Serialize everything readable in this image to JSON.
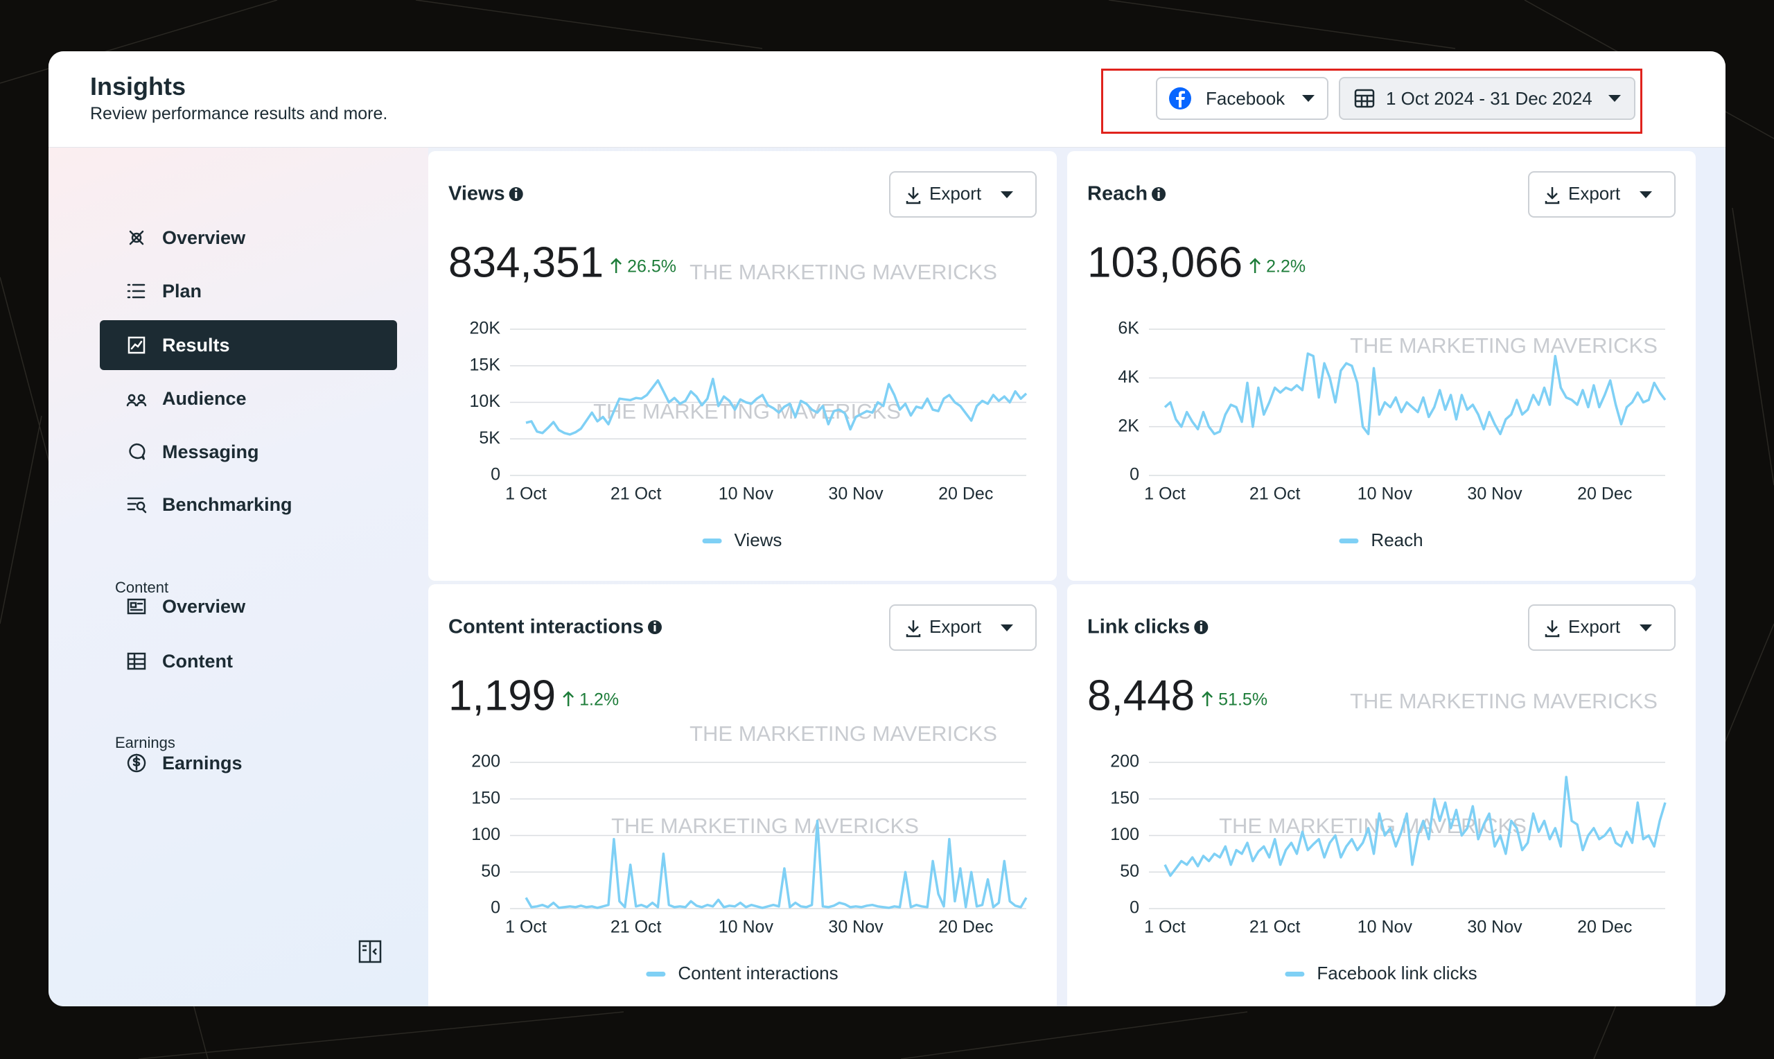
{
  "header": {
    "title": "Insights",
    "subtitle": "Review performance results and more.",
    "platform": "Facebook",
    "date_range": "1 Oct 2024 - 31 Dec 2024"
  },
  "nav": {
    "main": [
      "Overview",
      "Plan",
      "Results",
      "Audience",
      "Messaging",
      "Benchmarking"
    ],
    "content_heading": "Content",
    "content": [
      "Overview",
      "Content"
    ],
    "earnings_heading": "Earnings",
    "earnings": [
      "Earnings"
    ]
  },
  "chart_data": [
    {
      "type": "line",
      "title": "Views",
      "total": "834,351",
      "change": "26.5%",
      "export": "Export",
      "watermarks": [
        "THE MARKETING MAVERICKS",
        "THE MARKETING MAVERICKS"
      ],
      "categories": [
        "1 Oct",
        null,
        null,
        null,
        null,
        null,
        null,
        null,
        null,
        null,
        null,
        null,
        null,
        null,
        null,
        null,
        null,
        null,
        null,
        null,
        "21 Oct",
        null,
        null,
        null,
        null,
        null,
        null,
        null,
        null,
        null,
        null,
        null,
        null,
        null,
        null,
        null,
        null,
        null,
        null,
        null,
        "10 Nov",
        null,
        null,
        null,
        null,
        null,
        null,
        null,
        null,
        null,
        null,
        null,
        null,
        null,
        null,
        null,
        null,
        null,
        null,
        null,
        "30 Nov",
        null,
        null,
        null,
        null,
        null,
        null,
        null,
        null,
        null,
        null,
        null,
        null,
        null,
        null,
        null,
        null,
        null,
        null,
        null,
        "20 Dec",
        null,
        null,
        null,
        null,
        null,
        null,
        null,
        null,
        null,
        null,
        null
      ],
      "series": [
        {
          "name": "Views",
          "color": "#7fd0f5",
          "values": [
            7200,
            7400,
            6000,
            5800,
            6500,
            7300,
            6200,
            5800,
            5600,
            5900,
            6400,
            7500,
            8600,
            7400,
            8000,
            7000,
            8800,
            10500,
            10400,
            10300,
            10600,
            10500,
            11000,
            12000,
            13000,
            11500,
            10000,
            10600,
            9800,
            10200,
            11500,
            10800,
            9600,
            10500,
            13200,
            9500,
            10800,
            10200,
            9000,
            10400,
            10000,
            9800,
            10500,
            11000,
            9600,
            9200,
            8600,
            9400,
            9800,
            8000,
            10200,
            9800,
            9000,
            8600,
            9500,
            7000,
            8800,
            9000,
            8500,
            6300,
            8000,
            8400,
            8800,
            8600,
            10000,
            9500,
            12500,
            11000,
            9000,
            9800,
            8200,
            9400,
            9200,
            10500,
            9000,
            8800,
            10500,
            11000,
            10000,
            9500,
            8500,
            7500,
            9500,
            10200,
            9800,
            11000,
            10200,
            10800,
            10000,
            11500,
            10500,
            11200
          ]
        }
      ],
      "ylim": [
        0,
        20000
      ],
      "yticks": [
        0,
        {
          "value": 5000,
          "label": "5K"
        },
        {
          "value": 10000,
          "label": "10K"
        },
        {
          "value": 15000,
          "label": "15K"
        },
        {
          "value": 20000,
          "label": "20K"
        }
      ],
      "grid": true
    },
    {
      "type": "line",
      "title": "Reach",
      "total": "103,066",
      "change": "2.2%",
      "export": "Export",
      "watermarks": [
        "THE MARKETING MAVERICKS"
      ],
      "categories": [
        "1 Oct",
        null,
        null,
        null,
        null,
        null,
        null,
        null,
        null,
        null,
        null,
        null,
        null,
        null,
        null,
        null,
        null,
        null,
        null,
        null,
        "21 Oct",
        null,
        null,
        null,
        null,
        null,
        null,
        null,
        null,
        null,
        null,
        null,
        null,
        null,
        null,
        null,
        null,
        null,
        null,
        null,
        "10 Nov",
        null,
        null,
        null,
        null,
        null,
        null,
        null,
        null,
        null,
        null,
        null,
        null,
        null,
        null,
        null,
        null,
        null,
        null,
        null,
        "30 Nov",
        null,
        null,
        null,
        null,
        null,
        null,
        null,
        null,
        null,
        null,
        null,
        null,
        null,
        null,
        null,
        null,
        null,
        null,
        null,
        "20 Dec",
        null,
        null,
        null,
        null,
        null,
        null,
        null,
        null,
        null,
        null,
        null
      ],
      "series": [
        {
          "name": "Reach",
          "color": "#7fd0f5",
          "values": [
            2800,
            3000,
            2300,
            2000,
            2600,
            2200,
            1900,
            2600,
            2000,
            1700,
            1800,
            2500,
            2900,
            2800,
            2200,
            3800,
            2000,
            3600,
            2500,
            3000,
            3600,
            3400,
            3600,
            3500,
            3700,
            3500,
            5000,
            4900,
            3200,
            4600,
            4000,
            3000,
            4300,
            4600,
            4500,
            3800,
            2000,
            1700,
            4400,
            2500,
            3000,
            2800,
            3200,
            2600,
            3000,
            2800,
            2600,
            3200,
            2400,
            2800,
            3500,
            2700,
            3300,
            2300,
            3300,
            2700,
            2900,
            2500,
            1900,
            2600,
            2100,
            1700,
            2300,
            2500,
            3100,
            2500,
            2700,
            3300,
            2900,
            3600,
            2900,
            4900,
            3600,
            3200,
            3100,
            2900,
            3500,
            2800,
            3700,
            2800,
            3300,
            3900,
            2900,
            2100,
            2800,
            3000,
            3400,
            3000,
            3100,
            3800,
            3400,
            3100
          ]
        }
      ],
      "ylim": [
        0,
        6000
      ],
      "yticks": [
        0,
        {
          "value": 2000,
          "label": "2K"
        },
        {
          "value": 4000,
          "label": "4K"
        },
        {
          "value": 6000,
          "label": "6K"
        }
      ],
      "grid": true
    },
    {
      "type": "line",
      "title": "Content interactions",
      "total": "1,199",
      "change": "1.2%",
      "export": "Export",
      "watermarks": [
        "THE MARKETING MAVERICKS",
        "THE MARKETING MAVERICKS"
      ],
      "categories": [
        "1 Oct",
        null,
        null,
        null,
        null,
        null,
        null,
        null,
        null,
        null,
        null,
        null,
        null,
        null,
        null,
        null,
        null,
        null,
        null,
        null,
        "21 Oct",
        null,
        null,
        null,
        null,
        null,
        null,
        null,
        null,
        null,
        null,
        null,
        null,
        null,
        null,
        null,
        null,
        null,
        null,
        null,
        "10 Nov",
        null,
        null,
        null,
        null,
        null,
        null,
        null,
        null,
        null,
        null,
        null,
        null,
        null,
        null,
        null,
        null,
        null,
        null,
        null,
        "30 Nov",
        null,
        null,
        null,
        null,
        null,
        null,
        null,
        null,
        null,
        null,
        null,
        null,
        null,
        null,
        null,
        null,
        null,
        null,
        null,
        "20 Dec",
        null,
        null,
        null,
        null,
        null,
        null,
        null,
        null,
        null,
        null,
        null
      ],
      "series": [
        {
          "name": "Content interactions",
          "color": "#7fd0f5",
          "values": [
            15,
            2,
            3,
            5,
            2,
            8,
            1,
            2,
            3,
            2,
            4,
            2,
            3,
            1,
            3,
            5,
            95,
            10,
            2,
            60,
            3,
            5,
            2,
            8,
            2,
            75,
            5,
            2,
            3,
            2,
            10,
            4,
            2,
            5,
            3,
            12,
            2,
            4,
            3,
            8,
            2,
            5,
            3,
            1,
            3,
            5,
            3,
            55,
            2,
            8,
            3,
            2,
            5,
            120,
            3,
            2,
            4,
            8,
            6,
            2,
            3,
            2,
            4,
            5,
            3,
            2,
            1,
            3,
            2,
            50,
            2,
            5,
            3,
            2,
            65,
            20,
            3,
            95,
            10,
            55,
            2,
            50,
            3,
            5,
            40,
            2,
            8,
            65,
            10,
            4,
            2,
            15
          ]
        }
      ],
      "ylim": [
        0,
        200
      ],
      "yticks": [
        0,
        50,
        100,
        150,
        200
      ],
      "grid": true
    },
    {
      "type": "line",
      "title": "Link clicks",
      "total": "8,448",
      "change": "51.5%",
      "export": "Export",
      "watermarks": [
        "THE MARKETING MAVERICKS",
        "THE MARKETING MAVERICKS"
      ],
      "categories": [
        "1 Oct",
        null,
        null,
        null,
        null,
        null,
        null,
        null,
        null,
        null,
        null,
        null,
        null,
        null,
        null,
        null,
        null,
        null,
        null,
        null,
        "21 Oct",
        null,
        null,
        null,
        null,
        null,
        null,
        null,
        null,
        null,
        null,
        null,
        null,
        null,
        null,
        null,
        null,
        null,
        null,
        null,
        "10 Nov",
        null,
        null,
        null,
        null,
        null,
        null,
        null,
        null,
        null,
        null,
        null,
        null,
        null,
        null,
        null,
        null,
        null,
        null,
        null,
        "30 Nov",
        null,
        null,
        null,
        null,
        null,
        null,
        null,
        null,
        null,
        null,
        null,
        null,
        null,
        null,
        null,
        null,
        null,
        null,
        null,
        "20 Dec",
        null,
        null,
        null,
        null,
        null,
        null,
        null,
        null,
        null,
        null,
        null
      ],
      "series": [
        {
          "name": "Facebook link clicks",
          "color": "#7fd0f5",
          "values": [
            60,
            45,
            55,
            65,
            60,
            70,
            58,
            72,
            65,
            75,
            70,
            85,
            60,
            80,
            75,
            90,
            65,
            78,
            85,
            70,
            95,
            60,
            80,
            90,
            75,
            105,
            80,
            88,
            95,
            70,
            90,
            100,
            70,
            85,
            95,
            80,
            90,
            110,
            75,
            130,
            100,
            110,
            85,
            105,
            130,
            60,
            100,
            120,
            95,
            150,
            120,
            145,
            110,
            135,
            100,
            110,
            140,
            95,
            115,
            130,
            85,
            100,
            75,
            120,
            110,
            80,
            90,
            130,
            105,
            120,
            95,
            110,
            85,
            180,
            120,
            115,
            80,
            100,
            110,
            95,
            100,
            110,
            90,
            85,
            105,
            90,
            145,
            95,
            100,
            85,
            120,
            145
          ]
        }
      ],
      "ylim": [
        0,
        200
      ],
      "yticks": [
        0,
        50,
        100,
        150,
        200
      ],
      "grid": true
    }
  ]
}
